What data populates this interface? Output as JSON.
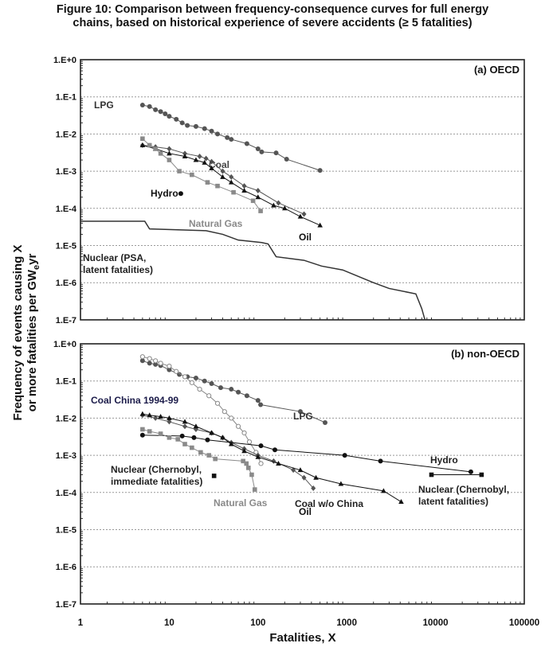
{
  "title_line1": "Figure 10: Comparison between frequency-consequence curves for full energy",
  "title_line2": "chains, based on historical experience of severe accidents (≥ 5 fatalities)",
  "chart_data": {
    "type": "line",
    "xlabel": "Fatalities, X",
    "ylabel_line1": "Frequency of events causing X",
    "ylabel_line2_pre": "or more fatalities per GW",
    "ylabel_line2_sub": "e",
    "ylabel_line2_post": "yr",
    "xscale": "log",
    "yscale": "log",
    "xlim": [
      1,
      100000
    ],
    "ylim": [
      1e-07,
      1
    ],
    "x_ticks": [
      "1",
      "10",
      "100",
      "1000",
      "10000",
      "100000"
    ],
    "y_ticks": [
      "1.E+0",
      "1.E-1",
      "1.E-2",
      "1.E-3",
      "1.E-4",
      "1.E-5",
      "1.E-6",
      "1.E-7"
    ],
    "grid": "horizontal dotted at decades",
    "panels": [
      {
        "label": "(a) OECD",
        "series": [
          {
            "name": "LPG",
            "label_lines": [
              "LPG"
            ],
            "marker": "circle",
            "color": "#555555",
            "label_color": "#333333",
            "points": [
              [
                5,
                0.06
              ],
              [
                6,
                0.055
              ],
              [
                7,
                0.045
              ],
              [
                8,
                0.04
              ],
              [
                9,
                0.035
              ],
              [
                10,
                0.03
              ],
              [
                12,
                0.025
              ],
              [
                14,
                0.02
              ],
              [
                16,
                0.017
              ],
              [
                20,
                0.016
              ],
              [
                25,
                0.014
              ],
              [
                30,
                0.012
              ],
              [
                35,
                0.01
              ],
              [
                45,
                0.008
              ],
              [
                50,
                0.0072
              ],
              [
                75,
                0.0055
              ],
              [
                100,
                0.004
              ],
              [
                110,
                0.0033
              ],
              [
                160,
                0.0031
              ],
              [
                210,
                0.0021
              ],
              [
                500,
                0.00105
              ]
            ]
          },
          {
            "name": "Coal",
            "label_lines": [
              "Coal"
            ],
            "marker": "diamond",
            "color": "#555555",
            "label_color": "#444444",
            "points": [
              [
                5,
                0.005
              ],
              [
                7,
                0.0045
              ],
              [
                10,
                0.004
              ],
              [
                15,
                0.003
              ],
              [
                22,
                0.0025
              ],
              [
                26,
                0.0022
              ],
              [
                30,
                0.0018
              ],
              [
                40,
                0.001
              ],
              [
                50,
                0.0007
              ],
              [
                70,
                0.0004
              ],
              [
                100,
                0.0003
              ],
              [
                170,
                0.00014
              ],
              [
                330,
                7e-05
              ]
            ]
          },
          {
            "name": "Oil",
            "label_lines": [
              "Oil"
            ],
            "marker": "triangle",
            "color": "#111111",
            "label_color": "#111111",
            "points": [
              [
                5,
                0.005
              ],
              [
                7,
                0.004
              ],
              [
                10,
                0.003
              ],
              [
                15,
                0.0025
              ],
              [
                20,
                0.002
              ],
              [
                25,
                0.0017
              ],
              [
                30,
                0.0012
              ],
              [
                40,
                0.0007
              ],
              [
                50,
                0.0005
              ],
              [
                70,
                0.0003
              ],
              [
                100,
                0.0002
              ],
              [
                150,
                0.00012
              ],
              [
                200,
                0.0001
              ],
              [
                300,
                6e-05
              ],
              [
                500,
                3.5e-05
              ]
            ]
          },
          {
            "name": "Natural Gas",
            "label_lines": [
              "Natural Gas"
            ],
            "marker": "square",
            "color": "#8a8a8a",
            "label_color": "#8a8a8a",
            "points": [
              [
                5,
                0.0075
              ],
              [
                6,
                0.005
              ],
              [
                7,
                0.004
              ],
              [
                8,
                0.003
              ],
              [
                10,
                0.002
              ],
              [
                13,
                0.001
              ],
              [
                18,
                0.0008
              ],
              [
                27,
                0.0005
              ],
              [
                35,
                0.0004
              ],
              [
                53,
                0.00027
              ],
              [
                88,
                0.00016
              ],
              [
                107,
                8.5e-05
              ]
            ]
          },
          {
            "name": "Hydro",
            "label_lines": [
              "Hydro"
            ],
            "marker": "circle",
            "color": "#111111",
            "label_color": "#111111",
            "points": [
              [
                13.5,
                0.00025
              ]
            ]
          },
          {
            "name": "Nuclear (PSA, latent fatalities)",
            "label_lines": [
              "Nuclear (PSA,",
              "latent fatalities)"
            ],
            "marker": "none",
            "color": "#333333",
            "label_color": "#222222",
            "points": [
              [
                1,
                4.5e-05
              ],
              [
                5.3,
                4.5e-05
              ],
              [
                6,
                2.8e-05
              ],
              [
                26,
                2.5e-05
              ],
              [
                40,
                2e-05
              ],
              [
                60,
                1.4e-05
              ],
              [
                110,
                1.2e-05
              ],
              [
                130,
                1.1e-05
              ],
              [
                160,
                5e-06
              ],
              [
                330,
                4e-06
              ],
              [
                520,
                2.8e-06
              ],
              [
                900,
                2.2e-06
              ],
              [
                2000,
                1e-06
              ],
              [
                3000,
                7e-07
              ],
              [
                6000,
                5e-07
              ],
              [
                7000,
                2e-07
              ],
              [
                7600,
                1e-07
              ]
            ]
          }
        ]
      },
      {
        "label": "(b) non-OECD",
        "series": [
          {
            "name": "LPG",
            "label_lines": [
              "LPG"
            ],
            "marker": "circle",
            "color": "#555555",
            "label_color": "#333333",
            "points": [
              [
                5,
                0.35
              ],
              [
                6,
                0.3
              ],
              [
                7,
                0.28
              ],
              [
                8,
                0.26
              ],
              [
                10,
                0.2
              ],
              [
                13,
                0.15
              ],
              [
                16,
                0.13
              ],
              [
                20,
                0.12
              ],
              [
                25,
                0.1
              ],
              [
                30,
                0.085
              ],
              [
                38,
                0.066
              ],
              [
                50,
                0.06
              ],
              [
                60,
                0.05
              ],
              [
                75,
                0.04
              ],
              [
                100,
                0.03
              ],
              [
                107,
                0.023
              ],
              [
                300,
                0.015
              ],
              [
                570,
                0.0076
              ]
            ]
          },
          {
            "name": "Coal China 1994-99",
            "label_lines": [
              "Coal China 1994-99"
            ],
            "marker": "open-circle",
            "color": "#888888",
            "label_color": "#1c1c4a",
            "points": [
              [
                5,
                0.45
              ],
              [
                6,
                0.4
              ],
              [
                7,
                0.35
              ],
              [
                8,
                0.3
              ],
              [
                10,
                0.25
              ],
              [
                12,
                0.18
              ],
              [
                15,
                0.13
              ],
              [
                18,
                0.09
              ],
              [
                22,
                0.06
              ],
              [
                28,
                0.04
              ],
              [
                35,
                0.025
              ],
              [
                42,
                0.015
              ],
              [
                50,
                0.01
              ],
              [
                60,
                0.006
              ],
              [
                70,
                0.004
              ],
              [
                80,
                0.0023
              ],
              [
                95,
                0.0012
              ],
              [
                108,
                0.0006
              ]
            ]
          },
          {
            "name": "Coal w/o China",
            "label_lines": [
              "Coal w/o China"
            ],
            "marker": "diamond",
            "color": "#555555",
            "label_color": "#222222",
            "points": [
              [
                5,
                0.012
              ],
              [
                7,
                0.01
              ],
              [
                10,
                0.008
              ],
              [
                15,
                0.006
              ],
              [
                20,
                0.005
              ],
              [
                30,
                0.004
              ],
              [
                40,
                0.003
              ],
              [
                50,
                0.0022
              ],
              [
                70,
                0.0015
              ],
              [
                100,
                0.001
              ],
              [
                150,
                0.0007
              ],
              [
                250,
                0.0004
              ],
              [
                330,
                0.00025
              ],
              [
                420,
                0.00013
              ]
            ]
          },
          {
            "name": "Oil",
            "label_lines": [
              "Oil"
            ],
            "marker": "triangle",
            "color": "#111111",
            "label_color": "#111111",
            "points": [
              [
                5,
                0.013
              ],
              [
                6,
                0.012
              ],
              [
                8,
                0.011
              ],
              [
                10,
                0.01
              ],
              [
                15,
                0.008
              ],
              [
                20,
                0.006
              ],
              [
                30,
                0.004
              ],
              [
                40,
                0.003
              ],
              [
                50,
                0.002
              ],
              [
                70,
                0.0013
              ],
              [
                100,
                0.0009
              ],
              [
                170,
                0.0006
              ],
              [
                300,
                0.0004
              ],
              [
                450,
                0.00025
              ],
              [
                860,
                0.00017
              ],
              [
                2600,
                0.00011
              ],
              [
                4100,
                5.6e-05
              ]
            ]
          },
          {
            "name": "Hydro",
            "label_lines": [
              "Hydro"
            ],
            "marker": "circle",
            "color": "#111111",
            "label_color": "#222222",
            "points": [
              [
                5,
                0.0035
              ],
              [
                14,
                0.0033
              ],
              [
                19,
                0.003
              ],
              [
                27,
                0.0026
              ],
              [
                108,
                0.0018
              ],
              [
                155,
                0.0014
              ],
              [
                950,
                0.001
              ],
              [
                2400,
                0.0007
              ],
              [
                25000,
                0.00036
              ]
            ]
          },
          {
            "name": "Natural Gas",
            "label_lines": [
              "Natural Gas"
            ],
            "marker": "square",
            "color": "#8a8a8a",
            "label_color": "#8a8a8a",
            "points": [
              [
                5,
                0.005
              ],
              [
                6,
                0.0044
              ],
              [
                8,
                0.0038
              ],
              [
                10,
                0.003
              ],
              [
                12.5,
                0.0027
              ],
              [
                15,
                0.002
              ],
              [
                18,
                0.0016
              ],
              [
                22.6,
                0.0012
              ],
              [
                28,
                0.001
              ],
              [
                33,
                0.0008
              ],
              [
                68,
                0.0007
              ],
              [
                74,
                0.0006
              ],
              [
                78,
                0.00046
              ],
              [
                85,
                0.0003
              ],
              [
                92,
                0.00012
              ]
            ]
          },
          {
            "name": "Nuclear (Chernobyl, immediate fatalities)",
            "label_lines": [
              "Nuclear (Chernobyl,",
              "immediate fatalities)"
            ],
            "marker": "square",
            "color": "#111111",
            "label_color": "#222222",
            "points": [
              [
                32,
                0.00028
              ]
            ]
          },
          {
            "name": "Nuclear (Chernobyl, latent fatalities)",
            "label_lines": [
              "Nuclear (Chernobyl,",
              "latent fatalities)"
            ],
            "marker": "square",
            "color": "#111111",
            "label_color": "#222222",
            "points": [
              [
                9000,
                0.0003
              ],
              [
                33000,
                0.0003
              ]
            ]
          }
        ]
      }
    ]
  }
}
